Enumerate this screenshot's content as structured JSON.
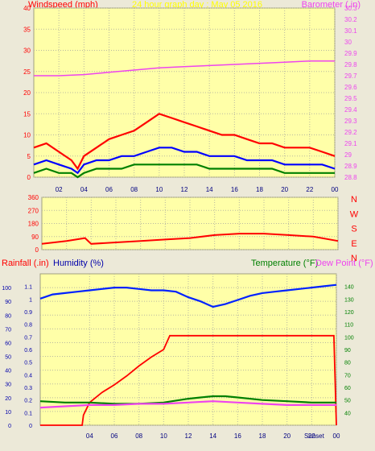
{
  "header": {
    "left": "Windspeed (mph)",
    "center": "24 hour graph day : May 05 2016",
    "right": "Barometer (.in)"
  },
  "bottom_header": {
    "rainfall": "Rainfall (.in)",
    "humidity": "Humidity (%)",
    "temperature": "Temperature (°F)",
    "dewpoint": "Dew Point (°F)"
  },
  "colors": {
    "plot_bg": "#ffffa8",
    "frame_bg": "#ece9d8",
    "wind_gust": "#ff0000",
    "wind_avg": "#0000ff",
    "wind_low": "#008000",
    "barometer": "#ee44ee",
    "direction": "#ff0000",
    "humidity": "#0022ff",
    "rainfall": "#ff0000",
    "temperature": "#008000",
    "dewpoint": "#ee44ee",
    "axis_red": "#ff0000",
    "axis_pink": "#ee44ee",
    "axis_blue": "#0000aa",
    "time_axis": "#000080"
  },
  "chart_data": [
    {
      "type": "line",
      "title": "24 hour graph day : May 05 2016",
      "ylabel": "Windspeed (mph)",
      "ylabel_right": "Barometer (.in)",
      "x_ticks": [
        "02",
        "04",
        "06",
        "08",
        "10",
        "12",
        "14",
        "16",
        "18",
        "20",
        "22",
        "00"
      ],
      "xlim": [
        0,
        24
      ],
      "ylim": [
        0,
        40
      ],
      "y_ticks": [
        0,
        5,
        10,
        15,
        20,
        25,
        30,
        35,
        40
      ],
      "ylim_right": [
        28.8,
        30.3
      ],
      "y_ticks_right": [
        "28.8",
        "28.9",
        "29",
        "29.1",
        "29.2",
        "29.3",
        "29.4",
        "29.5",
        "29.6",
        "29.7",
        "29.8",
        "29.9",
        "30",
        "30.1",
        "30.2",
        "30.3"
      ],
      "grid": true,
      "series": [
        {
          "key": "gust",
          "axis": "left",
          "x": [
            0,
            1,
            2,
            3,
            3.5,
            4,
            5,
            6,
            7,
            8,
            9,
            10,
            11,
            12,
            13,
            14,
            15,
            16,
            17,
            18,
            19,
            20,
            21,
            22,
            23,
            24
          ],
          "y": [
            7,
            8,
            6,
            4,
            2,
            5,
            7,
            9,
            10,
            11,
            13,
            15,
            14,
            13,
            12,
            11,
            10,
            10,
            9,
            8,
            8,
            7,
            7,
            7,
            6,
            5
          ]
        },
        {
          "key": "avg",
          "axis": "left",
          "x": [
            0,
            1,
            2,
            3,
            3.5,
            4,
            5,
            6,
            7,
            8,
            9,
            10,
            11,
            12,
            13,
            14,
            15,
            16,
            17,
            18,
            19,
            20,
            21,
            22,
            23,
            24
          ],
          "y": [
            3,
            4,
            3,
            2,
            1,
            3,
            4,
            4,
            5,
            5,
            6,
            7,
            7,
            6,
            6,
            5,
            5,
            5,
            4,
            4,
            4,
            3,
            3,
            3,
            3,
            2
          ]
        },
        {
          "key": "low",
          "axis": "left",
          "x": [
            0,
            1,
            2,
            3,
            3.5,
            4,
            5,
            6,
            7,
            8,
            9,
            10,
            11,
            12,
            13,
            14,
            15,
            16,
            17,
            18,
            19,
            20,
            21,
            22,
            23,
            24
          ],
          "y": [
            1,
            2,
            1,
            1,
            0,
            1,
            2,
            2,
            2,
            3,
            3,
            3,
            3,
            3,
            3,
            2,
            2,
            2,
            2,
            2,
            2,
            1,
            1,
            1,
            1,
            1
          ]
        },
        {
          "key": "barometer",
          "axis": "right",
          "x": [
            0,
            2,
            4,
            6,
            8,
            10,
            12,
            14,
            16,
            18,
            20,
            22,
            24
          ],
          "y": [
            29.7,
            29.7,
            29.71,
            29.73,
            29.75,
            29.77,
            29.78,
            29.79,
            29.8,
            29.81,
            29.82,
            29.83,
            29.83
          ]
        }
      ]
    },
    {
      "type": "line",
      "ylabel": "Wind direction",
      "ylim": [
        0,
        360
      ],
      "y_ticks": [
        0,
        90,
        180,
        270,
        360
      ],
      "compass_labels": [
        "N",
        "W",
        "S",
        "E",
        "N"
      ],
      "xlim": [
        0,
        24
      ],
      "grid": true,
      "series": [
        {
          "key": "direction",
          "x": [
            0,
            2,
            3.5,
            4,
            6,
            8,
            10,
            12,
            14,
            16,
            18,
            20,
            22,
            24
          ],
          "y": [
            40,
            60,
            80,
            40,
            50,
            60,
            70,
            80,
            100,
            110,
            110,
            100,
            90,
            60
          ]
        }
      ]
    },
    {
      "type": "line",
      "ylabel": "Rainfall (.in)",
      "ylabel_2": "Humidity (%)",
      "ylabel_right": "Temperature (°F)",
      "ylabel_right_2": "Dew Point (°F)",
      "x_ticks": [
        "04",
        "06",
        "08",
        "10",
        "12",
        "14",
        "16",
        "18",
        "20",
        "22",
        "00"
      ],
      "xlim": [
        0,
        24
      ],
      "rain_ticks": [
        "0",
        "0.1",
        "0.2",
        "0.3",
        "0.4",
        "0.5",
        "0.6",
        "0.7",
        "0.8",
        "0.9",
        "1",
        "1.1"
      ],
      "rain_lim": [
        0,
        1.2
      ],
      "humidity_ticks": [
        0,
        10,
        20,
        30,
        40,
        50,
        60,
        70,
        80,
        90,
        100
      ],
      "humidity_lim": [
        0,
        110
      ],
      "temp_ticks": [
        40,
        50,
        60,
        70,
        80,
        90,
        100,
        110,
        120,
        130,
        140
      ],
      "temp_lim": [
        30,
        150
      ],
      "annotations": [
        "Sunset"
      ],
      "grid": true,
      "series": [
        {
          "key": "humidity",
          "axis": "humidity",
          "x": [
            0,
            1,
            2,
            3,
            4,
            5,
            6,
            7,
            8,
            9,
            10,
            11,
            12,
            13,
            14,
            15,
            16,
            17,
            18,
            19,
            20,
            21,
            22,
            23,
            24
          ],
          "y": [
            92,
            95,
            96,
            97,
            98,
            99,
            100,
            100,
            99,
            98,
            98,
            97,
            93,
            90,
            86,
            88,
            91,
            94,
            96,
            97,
            98,
            99,
            100,
            101,
            102
          ]
        },
        {
          "key": "rainfall",
          "axis": "rain",
          "x": [
            0,
            2,
            3.4,
            3.5,
            4,
            5,
            6,
            7,
            8,
            9,
            10,
            10.5,
            23.8,
            24
          ],
          "y": [
            0,
            0,
            0,
            0.08,
            0.18,
            0.26,
            0.32,
            0.39,
            0.47,
            0.54,
            0.6,
            0.71,
            0.71,
            0
          ]
        },
        {
          "key": "temperature",
          "axis": "temp",
          "x": [
            0,
            2,
            4,
            6,
            8,
            10,
            12,
            13,
            14,
            15,
            16,
            18,
            20,
            22,
            24
          ],
          "y": [
            49,
            48,
            48,
            47,
            47,
            48,
            51,
            52,
            53,
            53,
            52,
            50,
            49,
            48,
            48
          ]
        },
        {
          "key": "dewpoint",
          "axis": "temp",
          "x": [
            0,
            2,
            4,
            6,
            8,
            10,
            12,
            14,
            16,
            18,
            20,
            22,
            24
          ],
          "y": [
            44,
            45,
            46,
            46,
            47,
            47,
            48,
            49,
            48,
            47,
            46,
            46,
            46
          ]
        }
      ]
    }
  ]
}
